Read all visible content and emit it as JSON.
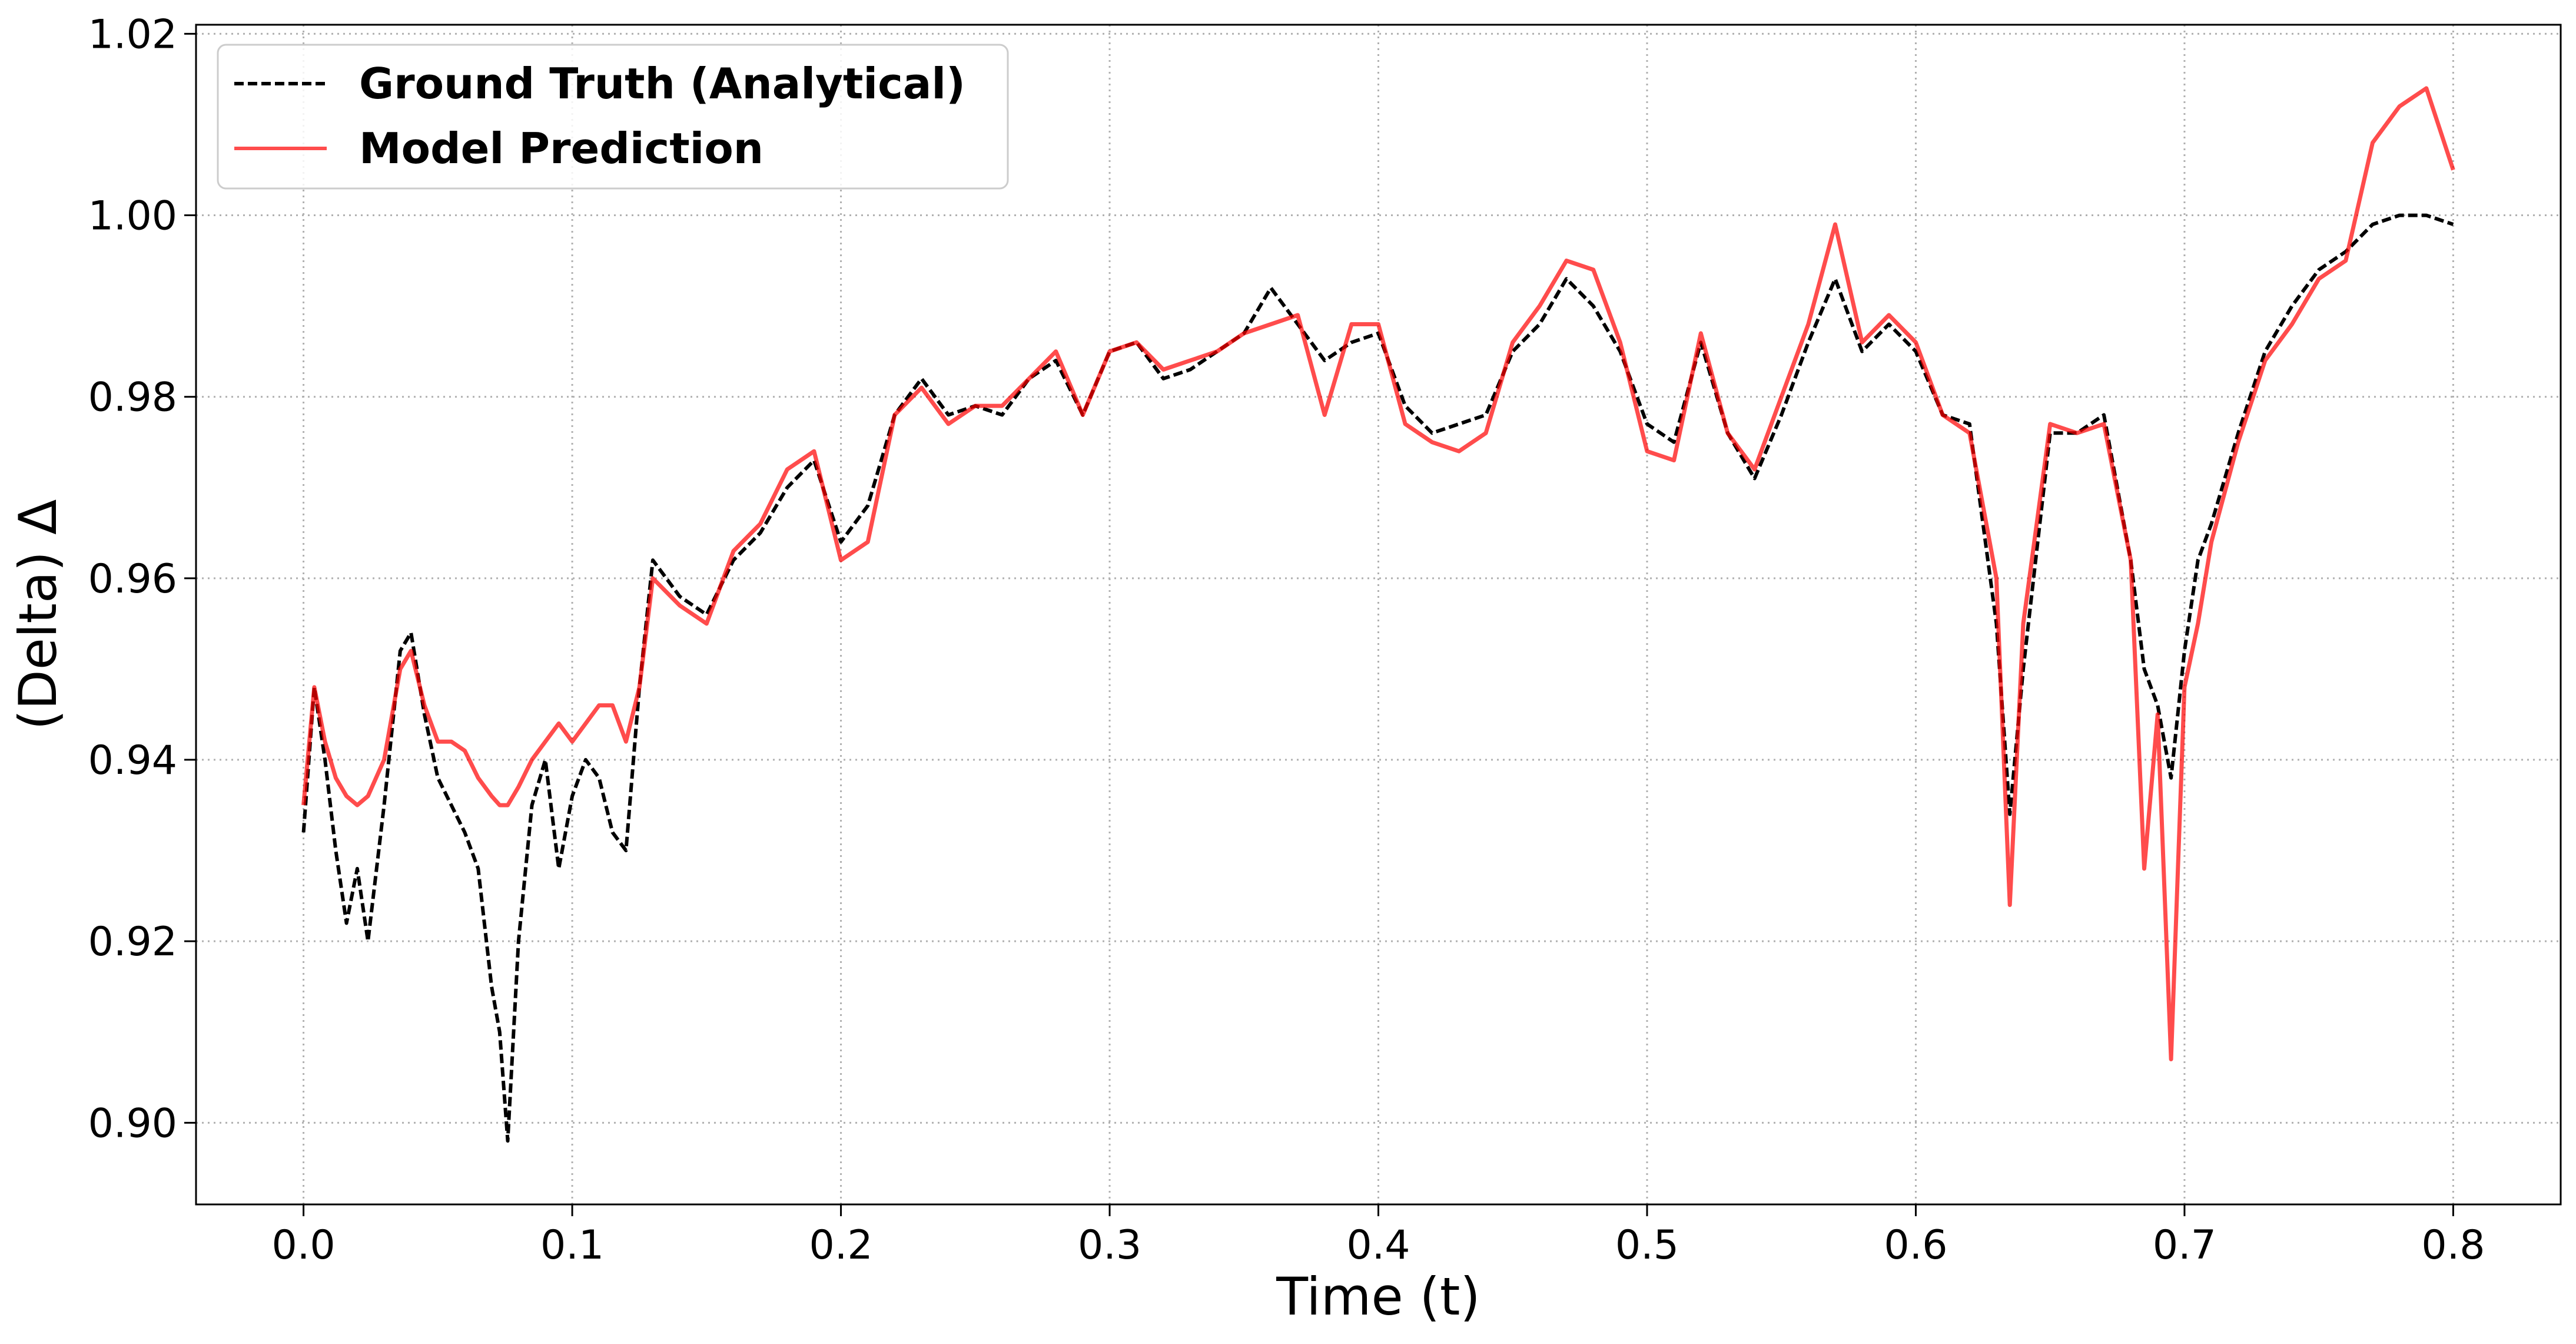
{
  "chart_data": {
    "type": "line",
    "title": "",
    "xlabel": "Time (t)",
    "ylabel": "(Delta) Δ",
    "xlim": [
      -0.04,
      0.84
    ],
    "ylim": [
      0.891,
      1.021
    ],
    "xticks": [
      0.0,
      0.1,
      0.2,
      0.3,
      0.4,
      0.5,
      0.6,
      0.7,
      0.8
    ],
    "xtick_labels": [
      "0.0",
      "0.1",
      "0.2",
      "0.3",
      "0.4",
      "0.5",
      "0.6",
      "0.7",
      "0.8"
    ],
    "yticks": [
      0.9,
      0.92,
      0.94,
      0.96,
      0.98,
      1.0,
      1.02
    ],
    "ytick_labels": [
      "0.90",
      "0.92",
      "0.94",
      "0.96",
      "0.98",
      "1.00",
      "1.02"
    ],
    "grid": true,
    "legend_position": "top-left",
    "series": [
      {
        "name": "Ground Truth (Analytical)",
        "color": "#000000",
        "style": "dashed",
        "x": [
          0.0,
          0.004,
          0.008,
          0.012,
          0.016,
          0.02,
          0.024,
          0.03,
          0.036,
          0.04,
          0.045,
          0.05,
          0.055,
          0.06,
          0.065,
          0.07,
          0.073,
          0.076,
          0.08,
          0.085,
          0.09,
          0.095,
          0.1,
          0.105,
          0.11,
          0.115,
          0.12,
          0.125,
          0.13,
          0.14,
          0.15,
          0.16,
          0.17,
          0.18,
          0.19,
          0.2,
          0.21,
          0.22,
          0.23,
          0.24,
          0.25,
          0.26,
          0.27,
          0.28,
          0.29,
          0.3,
          0.31,
          0.32,
          0.33,
          0.34,
          0.35,
          0.36,
          0.37,
          0.38,
          0.39,
          0.4,
          0.41,
          0.42,
          0.43,
          0.44,
          0.45,
          0.46,
          0.47,
          0.48,
          0.49,
          0.5,
          0.51,
          0.52,
          0.53,
          0.54,
          0.55,
          0.56,
          0.57,
          0.58,
          0.59,
          0.6,
          0.61,
          0.62,
          0.63,
          0.635,
          0.64,
          0.65,
          0.66,
          0.67,
          0.68,
          0.685,
          0.69,
          0.695,
          0.7,
          0.705,
          0.71,
          0.72,
          0.73,
          0.74,
          0.75,
          0.76,
          0.77,
          0.78,
          0.79,
          0.8
        ],
        "y": [
          0.932,
          0.948,
          0.94,
          0.93,
          0.922,
          0.928,
          0.92,
          0.935,
          0.952,
          0.954,
          0.945,
          0.938,
          0.935,
          0.932,
          0.928,
          0.915,
          0.91,
          0.898,
          0.92,
          0.935,
          0.94,
          0.928,
          0.936,
          0.94,
          0.938,
          0.932,
          0.93,
          0.948,
          0.962,
          0.958,
          0.956,
          0.962,
          0.965,
          0.97,
          0.973,
          0.964,
          0.968,
          0.978,
          0.982,
          0.978,
          0.979,
          0.978,
          0.982,
          0.984,
          0.978,
          0.985,
          0.986,
          0.982,
          0.983,
          0.985,
          0.987,
          0.992,
          0.988,
          0.984,
          0.986,
          0.987,
          0.979,
          0.976,
          0.977,
          0.978,
          0.985,
          0.988,
          0.993,
          0.99,
          0.985,
          0.977,
          0.975,
          0.986,
          0.976,
          0.971,
          0.978,
          0.986,
          0.993,
          0.985,
          0.988,
          0.985,
          0.978,
          0.977,
          0.955,
          0.934,
          0.95,
          0.976,
          0.976,
          0.978,
          0.962,
          0.95,
          0.946,
          0.938,
          0.952,
          0.962,
          0.966,
          0.976,
          0.985,
          0.99,
          0.994,
          0.996,
          0.999,
          1.0,
          1.0,
          0.999
        ]
      },
      {
        "name": "Model Prediction",
        "color": "#ff0000",
        "style": "solid",
        "x": [
          0.0,
          0.004,
          0.008,
          0.012,
          0.016,
          0.02,
          0.024,
          0.03,
          0.036,
          0.04,
          0.045,
          0.05,
          0.055,
          0.06,
          0.065,
          0.07,
          0.073,
          0.076,
          0.08,
          0.085,
          0.09,
          0.095,
          0.1,
          0.105,
          0.11,
          0.115,
          0.12,
          0.125,
          0.13,
          0.14,
          0.15,
          0.16,
          0.17,
          0.18,
          0.19,
          0.2,
          0.21,
          0.22,
          0.23,
          0.24,
          0.25,
          0.26,
          0.27,
          0.28,
          0.29,
          0.3,
          0.31,
          0.32,
          0.33,
          0.34,
          0.35,
          0.36,
          0.37,
          0.38,
          0.39,
          0.4,
          0.41,
          0.42,
          0.43,
          0.44,
          0.45,
          0.46,
          0.47,
          0.48,
          0.49,
          0.5,
          0.51,
          0.52,
          0.53,
          0.54,
          0.55,
          0.56,
          0.57,
          0.58,
          0.59,
          0.6,
          0.61,
          0.62,
          0.63,
          0.635,
          0.64,
          0.65,
          0.66,
          0.67,
          0.68,
          0.685,
          0.69,
          0.695,
          0.7,
          0.705,
          0.71,
          0.72,
          0.73,
          0.74,
          0.75,
          0.76,
          0.77,
          0.78,
          0.79,
          0.8
        ],
        "y": [
          0.935,
          0.948,
          0.942,
          0.938,
          0.936,
          0.935,
          0.936,
          0.94,
          0.95,
          0.952,
          0.946,
          0.942,
          0.942,
          0.941,
          0.938,
          0.936,
          0.935,
          0.935,
          0.937,
          0.94,
          0.942,
          0.944,
          0.942,
          0.944,
          0.946,
          0.946,
          0.942,
          0.948,
          0.96,
          0.957,
          0.955,
          0.963,
          0.966,
          0.972,
          0.974,
          0.962,
          0.964,
          0.978,
          0.981,
          0.977,
          0.979,
          0.979,
          0.982,
          0.985,
          0.978,
          0.985,
          0.986,
          0.983,
          0.984,
          0.985,
          0.987,
          0.988,
          0.989,
          0.978,
          0.988,
          0.988,
          0.977,
          0.975,
          0.974,
          0.976,
          0.986,
          0.99,
          0.995,
          0.994,
          0.986,
          0.974,
          0.973,
          0.987,
          0.976,
          0.972,
          0.98,
          0.988,
          0.999,
          0.986,
          0.989,
          0.986,
          0.978,
          0.976,
          0.96,
          0.924,
          0.955,
          0.977,
          0.976,
          0.977,
          0.962,
          0.928,
          0.945,
          0.907,
          0.948,
          0.955,
          0.964,
          0.975,
          0.984,
          0.988,
          0.993,
          0.995,
          1.008,
          1.012,
          1.014,
          1.005
        ]
      }
    ]
  }
}
